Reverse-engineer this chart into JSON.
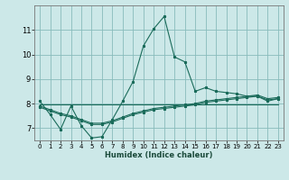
{
  "xlabel": "Humidex (Indice chaleur)",
  "bg_color": "#cce8e8",
  "grid_color": "#88bbbb",
  "line_color": "#1a6b5a",
  "xlim": [
    -0.5,
    23.5
  ],
  "ylim": [
    6.5,
    12.0
  ],
  "yticks": [
    7,
    8,
    9,
    10,
    11
  ],
  "xticks": [
    0,
    1,
    2,
    3,
    4,
    5,
    6,
    7,
    8,
    9,
    10,
    11,
    12,
    13,
    14,
    15,
    16,
    17,
    18,
    19,
    20,
    21,
    22,
    23
  ],
  "line1_x": [
    0,
    1,
    2,
    3,
    4,
    5,
    6,
    7,
    8,
    9,
    10,
    11,
    12,
    13,
    14,
    15,
    16,
    17,
    18,
    19,
    20,
    21,
    22,
    23
  ],
  "line1_y": [
    8.1,
    7.55,
    6.95,
    7.9,
    7.1,
    6.6,
    6.65,
    7.35,
    8.1,
    8.9,
    10.35,
    11.05,
    11.55,
    9.9,
    9.7,
    8.5,
    8.65,
    8.5,
    8.45,
    8.4,
    8.3,
    8.3,
    8.1,
    8.2
  ],
  "line2_x": [
    0,
    1,
    2,
    3,
    4,
    5,
    6,
    7,
    8,
    9,
    10,
    11,
    12,
    13,
    14,
    15,
    16,
    17,
    18,
    19,
    20,
    21,
    22,
    23
  ],
  "line2_y": [
    7.9,
    7.75,
    7.6,
    7.5,
    7.35,
    7.2,
    7.2,
    7.3,
    7.45,
    7.6,
    7.7,
    7.8,
    7.85,
    7.9,
    7.95,
    8.0,
    8.1,
    8.15,
    8.2,
    8.25,
    8.3,
    8.35,
    8.2,
    8.25
  ],
  "line3_x": [
    0,
    1,
    2,
    3,
    4,
    5,
    6,
    7,
    8,
    9,
    10,
    11,
    12,
    13,
    14,
    15,
    16,
    17,
    18,
    19,
    20,
    21,
    22,
    23
  ],
  "line3_y": [
    7.85,
    7.7,
    7.55,
    7.45,
    7.3,
    7.15,
    7.15,
    7.25,
    7.4,
    7.55,
    7.65,
    7.75,
    7.8,
    7.85,
    7.9,
    7.95,
    8.05,
    8.1,
    8.15,
    8.2,
    8.25,
    8.3,
    8.15,
    8.2
  ],
  "line4_x": [
    0,
    23
  ],
  "line4_y": [
    7.98,
    7.98
  ]
}
